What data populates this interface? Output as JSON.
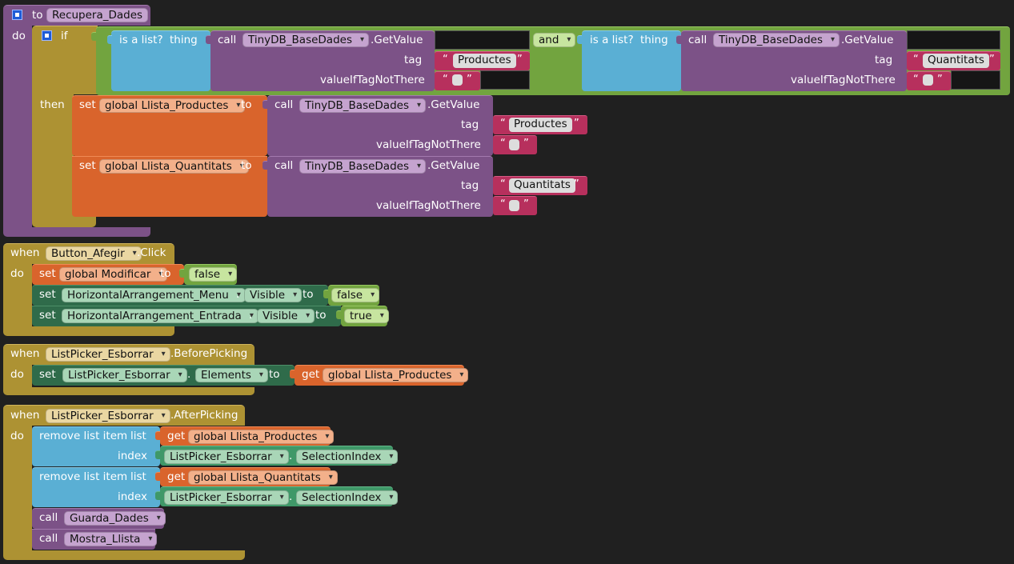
{
  "procedure": {
    "keyword_to": "to",
    "name": "Recupera_Dades",
    "keyword_do": "do",
    "keyword_if": "if",
    "keyword_then": "then",
    "keyword_and": "and",
    "is_list_label": "is a list?",
    "thing_label": "thing",
    "call_label": "call",
    "component": "TinyDB_BaseDades",
    "method": ".GetValue",
    "tag_label": "tag",
    "value_if_label": "valueIfTagNotThere",
    "cond1_tag": "Productes",
    "cond2_tag": "Quantitats",
    "set_label": "set",
    "to_label": "to",
    "set1_var": "global Llista_Productes",
    "set1_tag": "Productes",
    "set2_var": "global Llista_Quantitats",
    "set2_tag": "Quantitats",
    "open_quote": "“",
    "close_quote": "”"
  },
  "event1": {
    "when_label": "when",
    "component": "Button_Afegir",
    "event": ".Click",
    "do_label": "do",
    "set_label": "set",
    "to_label": "to",
    "dot": ".",
    "var": "global Modificar",
    "false_value": "false",
    "comp_menu": "HorizontalArrangement_Menu",
    "prop_visible": "Visible",
    "menu_value": "false",
    "comp_entrada": "HorizontalArrangement_Entrada",
    "entrada_value": "true"
  },
  "event2": {
    "when_label": "when",
    "component": "ListPicker_Esborrar",
    "event": ".BeforePicking",
    "do_label": "do",
    "set_label": "set",
    "to_label": "to",
    "dot": ".",
    "property": "Elements",
    "get_label": "get",
    "get_var": "global Llista_Productes"
  },
  "event3": {
    "when_label": "when",
    "component": "ListPicker_Esborrar",
    "event": ".AfterPicking",
    "do_label": "do",
    "remove_label": "remove list item",
    "list_label": "list",
    "index_label": "index",
    "get_label": "get",
    "get_var1": "global Llista_Productes",
    "get_var2": "global Llista_Quantitats",
    "dot": ".",
    "property": "SelectionIndex",
    "call_label": "call",
    "proc1": "Guarda_Dades",
    "proc2": "Mostra_Llista"
  }
}
